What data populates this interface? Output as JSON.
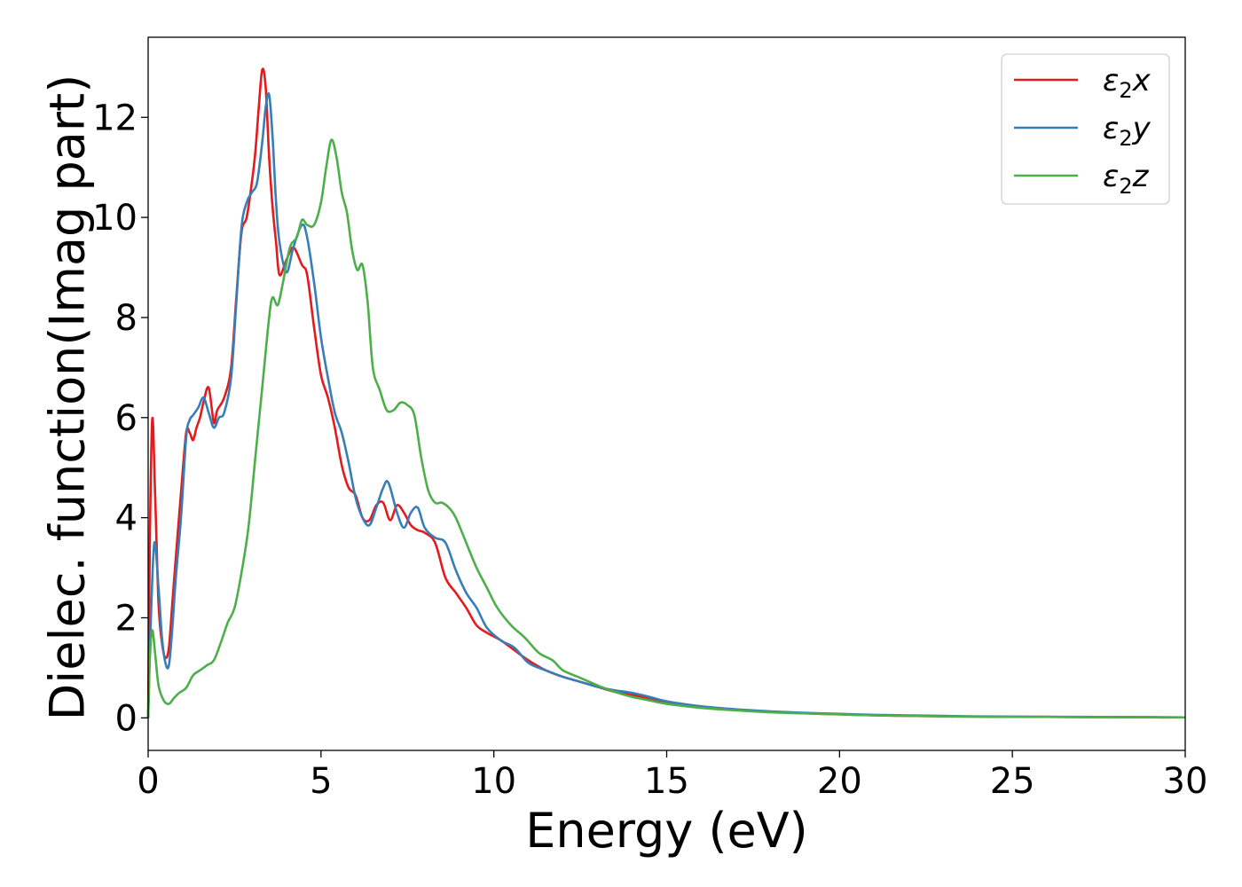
{
  "chart_data": {
    "type": "line",
    "xlabel": "Energy (eV)",
    "ylabel": "Dielec. function(Imag part)",
    "xlim": [
      0,
      30
    ],
    "ylim": [
      -0.65,
      13.6
    ],
    "xticks": [
      0,
      5,
      10,
      15,
      20,
      25,
      30
    ],
    "yticks": [
      0,
      2,
      4,
      6,
      8,
      10,
      12
    ],
    "grid": false,
    "legend_position": "top-right",
    "series": [
      {
        "name": "ε₂x",
        "legend_main": "ε",
        "legend_sub": "2",
        "legend_tail": "x",
        "color": "#e41a1c",
        "x": [
          0,
          0.05,
          0.12,
          0.2,
          0.3,
          0.4,
          0.5,
          0.6,
          0.7,
          0.8,
          0.95,
          1.1,
          1.2,
          1.3,
          1.4,
          1.5,
          1.6,
          1.75,
          1.9,
          2.0,
          2.2,
          2.4,
          2.55,
          2.7,
          2.85,
          3.0,
          3.1,
          3.2,
          3.3,
          3.4,
          3.5,
          3.6,
          3.7,
          3.8,
          4.0,
          4.2,
          4.45,
          4.6,
          4.8,
          5.0,
          5.2,
          5.4,
          5.6,
          5.8,
          6.0,
          6.2,
          6.4,
          6.6,
          6.8,
          7.0,
          7.2,
          7.4,
          7.6,
          7.8,
          8.0,
          8.3,
          8.6,
          8.9,
          9.2,
          9.5,
          9.8,
          10.2,
          10.6,
          11.0,
          11.5,
          12.0,
          12.5,
          13.0,
          13.5,
          14.0,
          14.5,
          15.0,
          16.0,
          17.0,
          18.0,
          19.0,
          20.0,
          21.0,
          22.0,
          23.0,
          24.0,
          25.0,
          26.0,
          27.0,
          28.0,
          29.0,
          30.0
        ],
        "values": [
          0.0,
          3.6,
          5.98,
          4.5,
          2.3,
          1.5,
          1.2,
          1.4,
          2.3,
          3.2,
          4.5,
          5.7,
          5.7,
          5.55,
          5.8,
          6.0,
          6.3,
          6.6,
          5.9,
          6.15,
          6.4,
          7.0,
          8.4,
          9.7,
          10.0,
          10.7,
          11.3,
          12.2,
          12.95,
          12.6,
          11.2,
          10.2,
          9.5,
          8.85,
          9.15,
          9.4,
          9.05,
          8.85,
          7.8,
          6.85,
          6.4,
          5.8,
          5.05,
          4.6,
          4.45,
          4.0,
          3.95,
          4.25,
          4.3,
          3.95,
          4.25,
          4.1,
          3.85,
          3.75,
          3.7,
          3.5,
          2.8,
          2.5,
          2.2,
          1.85,
          1.7,
          1.55,
          1.35,
          1.15,
          0.95,
          0.82,
          0.72,
          0.62,
          0.52,
          0.46,
          0.38,
          0.32,
          0.22,
          0.16,
          0.12,
          0.09,
          0.07,
          0.05,
          0.04,
          0.03,
          0.025,
          0.02,
          0.02,
          0.015,
          0.015,
          0.01,
          0.01
        ]
      },
      {
        "name": "ε₂y",
        "legend_main": "ε",
        "legend_sub": "2",
        "legend_tail": "y",
        "color": "#377eb8",
        "x": [
          0,
          0.08,
          0.18,
          0.3,
          0.4,
          0.5,
          0.6,
          0.7,
          0.8,
          0.95,
          1.1,
          1.2,
          1.3,
          1.45,
          1.6,
          1.75,
          1.9,
          2.05,
          2.2,
          2.4,
          2.55,
          2.7,
          2.85,
          3.0,
          3.15,
          3.3,
          3.4,
          3.5,
          3.6,
          3.7,
          3.8,
          4.0,
          4.2,
          4.45,
          4.6,
          4.8,
          5.0,
          5.2,
          5.4,
          5.6,
          5.8,
          6.0,
          6.2,
          6.4,
          6.6,
          6.8,
          6.95,
          7.2,
          7.4,
          7.6,
          7.8,
          8.0,
          8.3,
          8.6,
          8.9,
          9.2,
          9.5,
          9.8,
          10.2,
          10.6,
          11.0,
          11.5,
          12.0,
          12.5,
          13.0,
          13.5,
          14.0,
          14.5,
          15.0,
          16.0,
          17.0,
          18.0,
          19.0,
          20.0,
          21.0,
          22.0,
          23.0,
          24.0,
          25.0,
          26.0,
          27.0,
          28.0,
          29.0,
          30.0
        ],
        "values": [
          0.0,
          2.0,
          3.5,
          2.6,
          1.6,
          1.1,
          1.05,
          1.8,
          2.8,
          4.0,
          5.6,
          5.95,
          6.05,
          6.2,
          6.4,
          6.1,
          5.8,
          6.0,
          6.1,
          6.8,
          8.3,
          9.8,
          10.3,
          10.5,
          10.7,
          11.5,
          12.2,
          12.45,
          11.6,
          10.3,
          9.5,
          8.9,
          9.4,
          9.85,
          9.6,
          8.7,
          7.6,
          6.8,
          6.1,
          5.7,
          5.1,
          4.4,
          4.0,
          3.85,
          4.2,
          4.6,
          4.7,
          4.1,
          3.8,
          4.1,
          4.2,
          3.8,
          3.6,
          3.5,
          2.95,
          2.5,
          2.2,
          1.8,
          1.55,
          1.4,
          1.1,
          0.95,
          0.82,
          0.72,
          0.62,
          0.55,
          0.5,
          0.42,
          0.33,
          0.23,
          0.17,
          0.13,
          0.1,
          0.08,
          0.06,
          0.05,
          0.04,
          0.03,
          0.025,
          0.02,
          0.02,
          0.015,
          0.015,
          0.01
        ]
      },
      {
        "name": "ε₂z",
        "legend_main": "ε",
        "legend_sub": "2",
        "legend_tail": "z",
        "color": "#4daf4a",
        "x": [
          0,
          0.05,
          0.12,
          0.2,
          0.3,
          0.45,
          0.6,
          0.75,
          0.9,
          1.1,
          1.3,
          1.5,
          1.7,
          1.9,
          2.1,
          2.3,
          2.5,
          2.7,
          2.9,
          3.1,
          3.3,
          3.5,
          3.6,
          3.75,
          3.9,
          4.1,
          4.3,
          4.45,
          4.6,
          4.8,
          5.0,
          5.15,
          5.3,
          5.45,
          5.6,
          5.75,
          5.9,
          6.05,
          6.2,
          6.35,
          6.5,
          6.7,
          6.9,
          7.1,
          7.3,
          7.5,
          7.7,
          7.9,
          8.1,
          8.3,
          8.5,
          8.7,
          8.9,
          9.2,
          9.5,
          9.8,
          10.1,
          10.5,
          10.9,
          11.3,
          11.7,
          12.0,
          12.5,
          13.0,
          13.5,
          14.0,
          14.5,
          15.0,
          16.0,
          17.0,
          18.0,
          19.0,
          20.0,
          21.0,
          22.0,
          23.0,
          24.0,
          25.0,
          26.0,
          27.0,
          28.0,
          29.0,
          30.0
        ],
        "values": [
          0.0,
          1.2,
          1.75,
          1.3,
          0.65,
          0.35,
          0.28,
          0.4,
          0.5,
          0.6,
          0.85,
          0.95,
          1.05,
          1.15,
          1.5,
          1.9,
          2.2,
          2.9,
          3.8,
          5.2,
          6.6,
          8.0,
          8.4,
          8.25,
          8.7,
          9.4,
          9.6,
          9.95,
          9.85,
          9.85,
          10.3,
          11.0,
          11.55,
          11.2,
          10.5,
          10.1,
          9.35,
          8.95,
          9.05,
          8.3,
          7.0,
          6.55,
          6.15,
          6.15,
          6.3,
          6.25,
          6.05,
          5.2,
          4.55,
          4.3,
          4.3,
          4.2,
          4.0,
          3.5,
          3.0,
          2.6,
          2.2,
          1.85,
          1.6,
          1.3,
          1.15,
          0.95,
          0.8,
          0.65,
          0.52,
          0.42,
          0.35,
          0.28,
          0.2,
          0.15,
          0.11,
          0.09,
          0.07,
          0.05,
          0.04,
          0.03,
          0.025,
          0.02,
          0.02,
          0.015,
          0.015,
          0.01,
          0.01
        ]
      }
    ]
  }
}
